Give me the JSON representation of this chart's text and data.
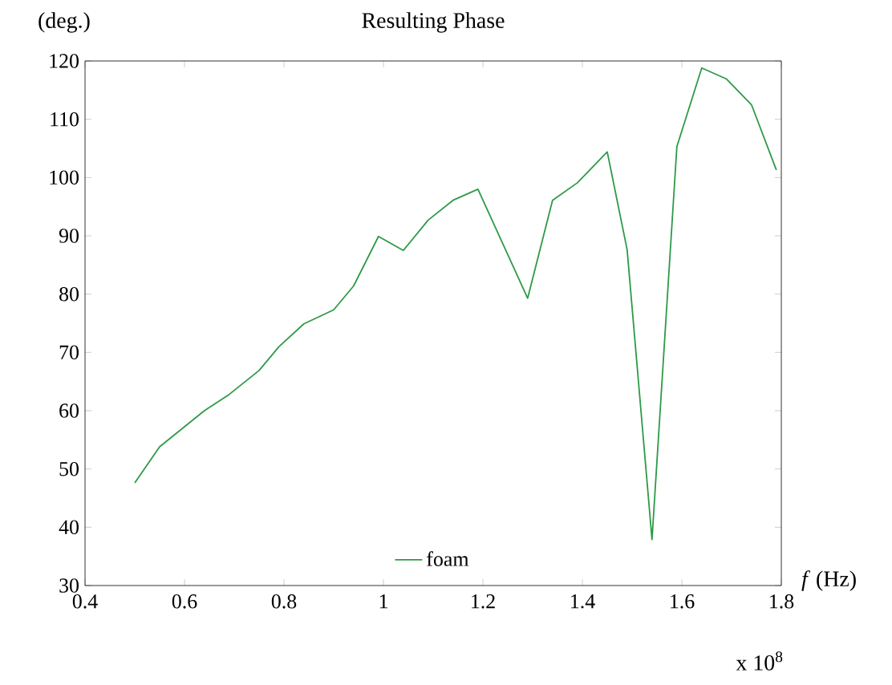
{
  "chart_data": {
    "type": "line",
    "title": "Resulting Phase",
    "ylabel": "(deg.)",
    "xlabel": "*f* (Hz)",
    "annotations": [
      "x 10$^{8}$"
    ],
    "x": [
      0.5,
      0.55,
      0.64,
      0.69,
      0.75,
      0.79,
      0.84,
      0.9,
      0.94,
      0.99,
      1.04,
      1.09,
      1.14,
      1.19,
      1.29,
      1.34,
      1.39,
      1.45,
      1.49,
      1.54,
      1.59,
      1.64,
      1.69,
      1.74,
      1.79
    ],
    "series": [
      {
        "name": "foam",
        "color": "#2e9a48",
        "values": [
          47.6,
          53.8,
          60.0,
          62.8,
          66.9,
          71.0,
          74.9,
          77.3,
          81.4,
          89.9,
          87.5,
          92.7,
          96.1,
          98.0,
          79.3,
          96.1,
          99.1,
          104.4,
          87.6,
          37.9,
          105.3,
          118.8,
          116.9,
          112.5,
          101.3
        ]
      }
    ],
    "xlim": [
      0.4,
      1.8
    ],
    "xticks": [
      0.4,
      0.6,
      0.8,
      1,
      1.2,
      1.4,
      1.6,
      1.8
    ],
    "ylim": [
      30,
      120
    ],
    "yticks": [
      30,
      40,
      50,
      60,
      70,
      80,
      90,
      100,
      110,
      120
    ],
    "legend": "bottom",
    "marker": "none",
    "line_style": "solid",
    "grid": false
  }
}
